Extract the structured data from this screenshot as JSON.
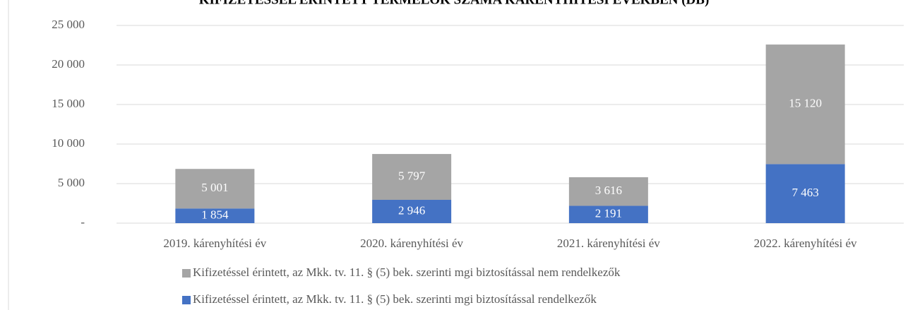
{
  "chart_data": {
    "type": "bar",
    "stacked": true,
    "title": "KIFIZETÉSSEL ÉRINTETT TERMELŐK SZÁMA KÁRENYHÍTÉSI ÉVEKBEN (DB)",
    "categories": [
      "2019. kárenyhítési év",
      "2020. kárenyhítési év",
      "2021. kárenyhítési év",
      "2022. kárenyhítési év"
    ],
    "series": [
      {
        "name": "Kifizetéssel érintett, az Mkk. tv. 11. § (5) bek. szerinti mgi biztosítással rendelkezők",
        "color": "#4472c4",
        "values": [
          1854,
          2946,
          2191,
          7463
        ],
        "value_labels": [
          "1 854",
          "2 946",
          "2 191",
          "7 463"
        ]
      },
      {
        "name": "Kifizetéssel érintett, az Mkk. tv. 11. § (5) bek. szerinti mgi biztosítással nem rendelkezők",
        "color": "#a5a5a5",
        "values": [
          5001,
          5797,
          3616,
          15120
        ],
        "value_labels": [
          "5 001",
          "5 797",
          "3 616",
          "15 120"
        ]
      }
    ],
    "ylim": [
      0,
      25000
    ],
    "yticks": [
      {
        "value": 0,
        "label": "-"
      },
      {
        "value": 5000,
        "label": "5 000"
      },
      {
        "value": 10000,
        "label": "10 000"
      },
      {
        "value": 15000,
        "label": "15 000"
      },
      {
        "value": 20000,
        "label": "20 000"
      },
      {
        "value": 25000,
        "label": "25 000"
      }
    ],
    "grid": true
  }
}
